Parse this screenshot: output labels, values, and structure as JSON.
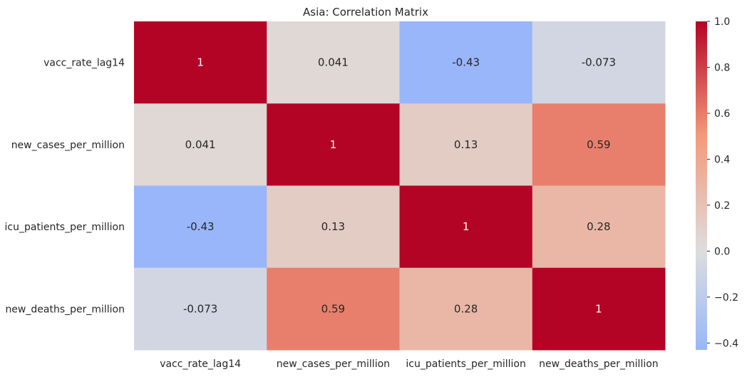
{
  "chart_data": {
    "type": "heatmap",
    "title": "Asia: Correlation Matrix",
    "x_labels": [
      "vacc_rate_lag14",
      "new_cases_per_million",
      "icu_patients_per_million",
      "new_deaths_per_million"
    ],
    "y_labels": [
      "vacc_rate_lag14",
      "new_cases_per_million",
      "icu_patients_per_million",
      "new_deaths_per_million"
    ],
    "values": [
      [
        1,
        0.041,
        -0.43,
        -0.073
      ],
      [
        0.041,
        1,
        0.13,
        0.59
      ],
      [
        -0.43,
        0.13,
        1,
        0.28
      ],
      [
        -0.073,
        0.59,
        0.28,
        1
      ]
    ],
    "cell_labels": [
      [
        "1",
        "0.041",
        "-0.43",
        "-0.073"
      ],
      [
        "0.041",
        "1",
        "0.13",
        "0.59"
      ],
      [
        "-0.43",
        "0.13",
        "1",
        "0.28"
      ],
      [
        "-0.073",
        "0.59",
        "0.28",
        "1"
      ]
    ],
    "colormap": "coolwarm",
    "colorbar": {
      "range": [
        -0.43,
        1.0
      ],
      "ticks": [
        1.0,
        0.8,
        0.6,
        0.4,
        0.2,
        0.0,
        -0.2,
        -0.4
      ],
      "tick_labels": [
        "1.0",
        "0.8",
        "0.6",
        "0.4",
        "0.2",
        "0.0",
        "−0.2",
        "−0.4"
      ]
    }
  }
}
